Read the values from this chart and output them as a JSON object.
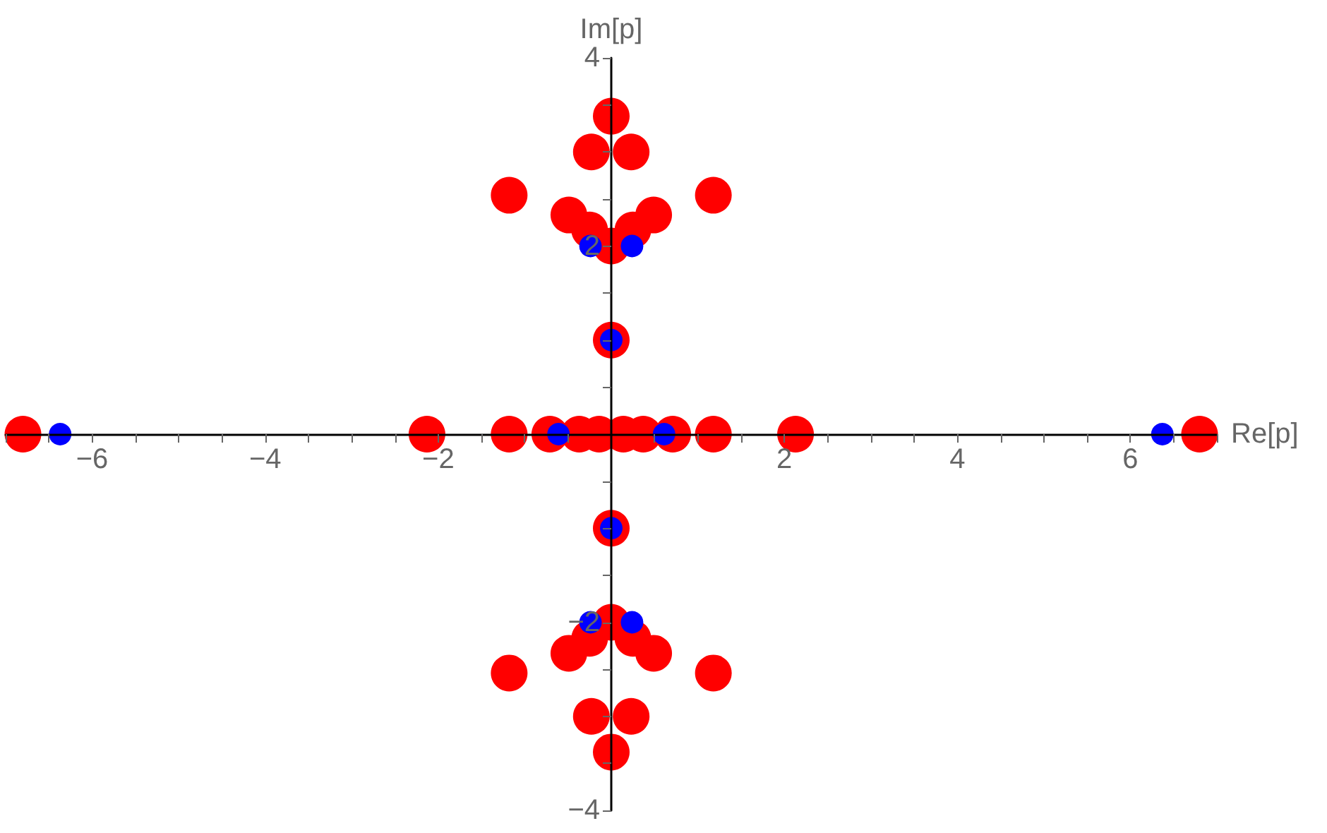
{
  "chart_data": {
    "type": "scatter",
    "xlabel": "Re[p]",
    "ylabel": "Im[p]",
    "xlim": [
      -7,
      7
    ],
    "ylim": [
      -4,
      4
    ],
    "xticks": [
      {
        "value": -7,
        "label": null
      },
      {
        "value": -6.5,
        "label": null
      },
      -6,
      {
        "value": -5.5,
        "label": null
      },
      {
        "value": -5,
        "label": null
      },
      {
        "value": -4.5,
        "label": null
      },
      -4,
      {
        "value": -3.5,
        "label": null
      },
      {
        "value": -3,
        "label": null
      },
      {
        "value": -2.5,
        "label": null
      },
      -2,
      {
        "value": -1.5,
        "label": null
      },
      {
        "value": -1,
        "label": null
      },
      {
        "value": -0.5,
        "label": null
      },
      {
        "value": 0.5,
        "label": null
      },
      {
        "value": 1,
        "label": null
      },
      {
        "value": 1.5,
        "label": null
      },
      2,
      {
        "value": 2.5,
        "label": null
      },
      {
        "value": 3,
        "label": null
      },
      {
        "value": 3.5,
        "label": null
      },
      4,
      {
        "value": 4.5,
        "label": null
      },
      {
        "value": 5,
        "label": null
      },
      {
        "value": 5.5,
        "label": null
      },
      6,
      {
        "value": 6.5,
        "label": null
      },
      {
        "value": 7,
        "label": null
      }
    ],
    "yticks": [
      4,
      {
        "value": 3.5,
        "label": null
      },
      {
        "value": 3,
        "label": null
      },
      {
        "value": 2.5,
        "label": null
      },
      2,
      {
        "value": 1.5,
        "label": null
      },
      {
        "value": 1,
        "label": null
      },
      {
        "value": 0.5,
        "label": null
      },
      {
        "value": -0.5,
        "label": null
      },
      {
        "value": -1,
        "label": null
      },
      {
        "value": -1.5,
        "label": null
      },
      -2,
      {
        "value": -2.5,
        "label": null
      },
      {
        "value": -3,
        "label": null
      },
      {
        "value": -3.5,
        "label": null
      },
      -4
    ],
    "grid": false,
    "marker": "circle",
    "series": [
      {
        "color": "#ff0000",
        "x": [
          0,
          -0.23,
          0.23,
          -1.18,
          1.18,
          -0.49,
          0.49,
          -0.25,
          0.25,
          0,
          0,
          0,
          -0.23,
          0.23,
          -1.18,
          1.18,
          -0.49,
          0.49,
          -0.25,
          0.25,
          0,
          0,
          -6.8,
          6.8,
          -2.13,
          2.13,
          -1.18,
          1.18,
          -0.71,
          0.71,
          -0.37,
          0.37,
          -0.14,
          0.14
        ],
        "values": [
          3.38,
          3,
          3,
          2.54,
          2.54,
          2.33,
          2.33,
          2.17,
          2.17,
          2,
          1,
          -3.38,
          -3,
          -3,
          -2.54,
          -2.54,
          -2.33,
          -2.33,
          -2.17,
          -2.17,
          -2,
          -1,
          0,
          0,
          0,
          0,
          0,
          0,
          0,
          0,
          0,
          0,
          0,
          0
        ]
      },
      {
        "color": "#0000ff",
        "x": [
          -0.24,
          0.24,
          0,
          0,
          -0.24,
          0.24,
          -0.61,
          0.61,
          -6.37,
          6.37
        ],
        "values": [
          2,
          2,
          1,
          -1,
          -2,
          -2,
          0,
          0,
          0,
          0
        ]
      }
    ]
  }
}
